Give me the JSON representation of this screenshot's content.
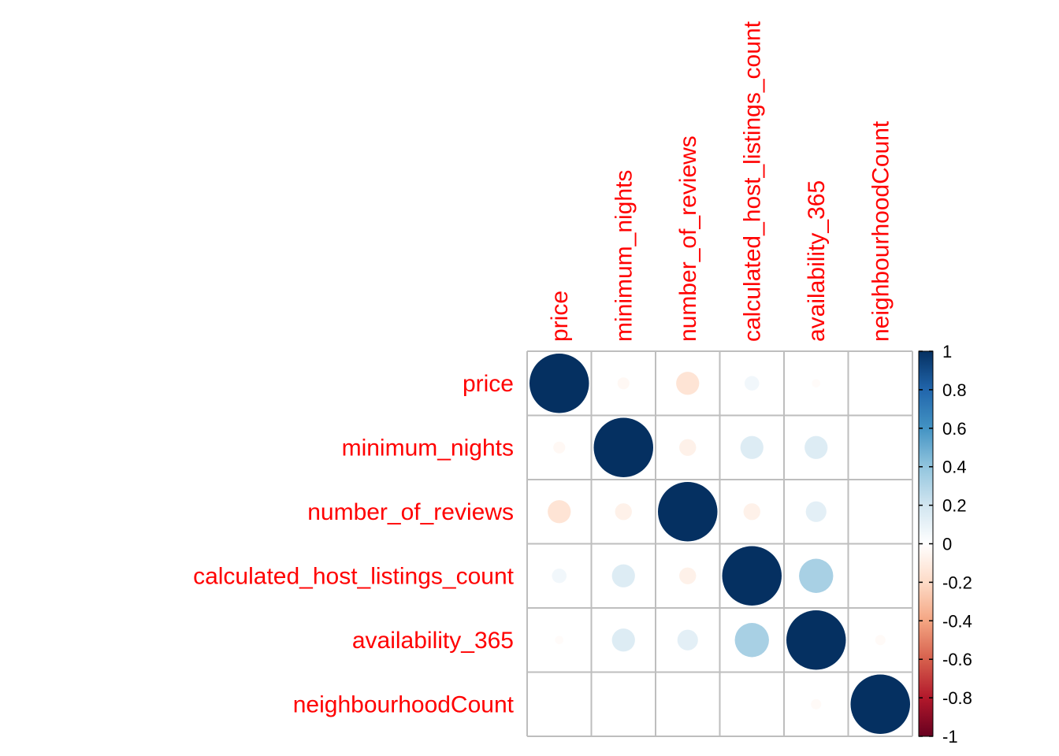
{
  "chart_data": {
    "type": "heatmap",
    "variables": [
      "price",
      "minimum_nights",
      "number_of_reviews",
      "calculated_host_listings_count",
      "availability_365",
      "neighbourhoodCount"
    ],
    "matrix": [
      [
        1.0,
        -0.04,
        -0.15,
        0.06,
        -0.02,
        0.0
      ],
      [
        -0.04,
        1.0,
        -0.08,
        0.15,
        0.15,
        0.0
      ],
      [
        -0.15,
        -0.08,
        1.0,
        -0.08,
        0.12,
        0.0
      ],
      [
        0.06,
        0.15,
        -0.08,
        1.0,
        0.33,
        0.0
      ],
      [
        -0.02,
        0.15,
        0.12,
        0.33,
        1.0,
        -0.03
      ],
      [
        0.0,
        0.0,
        0.0,
        0.0,
        -0.03,
        1.0
      ]
    ],
    "colorbar": {
      "ticks": [
        "1",
        "0.8",
        "0.6",
        "0.4",
        "0.2",
        "0",
        "-0.2",
        "-0.4",
        "-0.6",
        "-0.8",
        "-1"
      ],
      "range": [
        -1,
        1
      ]
    },
    "colors": {
      "label": "#ff0000",
      "grid": "#bebebe",
      "palette": [
        "#67001F",
        "#B2182B",
        "#D6604D",
        "#F4A582",
        "#FDDBC7",
        "#FFFFFF",
        "#D1E5F0",
        "#92C5DE",
        "#4393C3",
        "#2166AC",
        "#053061"
      ]
    }
  }
}
